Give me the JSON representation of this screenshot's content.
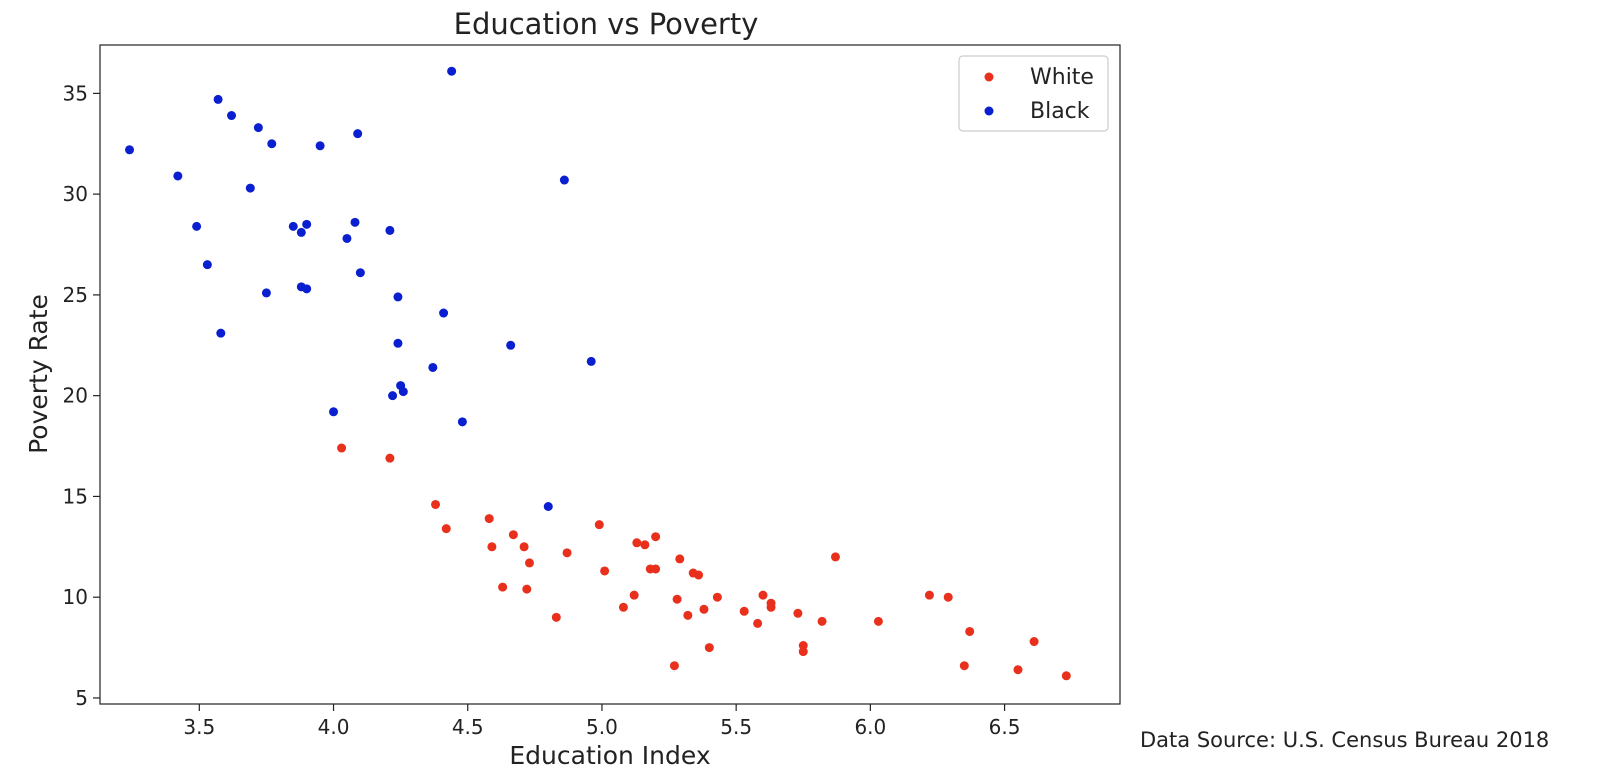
{
  "chart_data": {
    "type": "scatter",
    "title": "Education vs Poverty",
    "xlabel": "Education Index",
    "ylabel": "Poverty Rate",
    "xlim": [
      3.13,
      6.93
    ],
    "ylim": [
      4.7,
      37.4
    ],
    "xticks": [
      3.5,
      4.0,
      4.5,
      5.0,
      5.5,
      6.0,
      6.5
    ],
    "xtick_labels": [
      "3.5",
      "4.0",
      "4.5",
      "5.0",
      "5.5",
      "6.0",
      "6.5"
    ],
    "yticks": [
      5,
      10,
      15,
      20,
      25,
      30,
      35
    ],
    "ytick_labels": [
      "5",
      "10",
      "15",
      "20",
      "25",
      "30",
      "35"
    ],
    "grid": false,
    "legend_position": "top-right",
    "series": [
      {
        "name": "White",
        "color": "#e8301c",
        "points": [
          [
            4.03,
            17.4
          ],
          [
            4.21,
            16.9
          ],
          [
            4.38,
            14.6
          ],
          [
            4.42,
            13.4
          ],
          [
            4.58,
            13.9
          ],
          [
            4.59,
            12.5
          ],
          [
            4.63,
            10.5
          ],
          [
            4.67,
            13.1
          ],
          [
            4.71,
            12.5
          ],
          [
            4.72,
            10.4
          ],
          [
            4.73,
            11.7
          ],
          [
            4.83,
            9.0
          ],
          [
            4.87,
            12.2
          ],
          [
            4.99,
            13.6
          ],
          [
            5.01,
            11.3
          ],
          [
            5.08,
            9.5
          ],
          [
            5.12,
            10.1
          ],
          [
            5.13,
            12.7
          ],
          [
            5.16,
            12.6
          ],
          [
            5.18,
            11.4
          ],
          [
            5.2,
            11.4
          ],
          [
            5.2,
            13.0
          ],
          [
            5.27,
            6.6
          ],
          [
            5.28,
            9.9
          ],
          [
            5.29,
            11.9
          ],
          [
            5.32,
            9.1
          ],
          [
            5.34,
            11.2
          ],
          [
            5.36,
            11.1
          ],
          [
            5.38,
            9.4
          ],
          [
            5.4,
            7.5
          ],
          [
            5.43,
            10.0
          ],
          [
            5.53,
            9.3
          ],
          [
            5.58,
            8.7
          ],
          [
            5.6,
            10.1
          ],
          [
            5.63,
            9.7
          ],
          [
            5.63,
            9.5
          ],
          [
            5.73,
            9.2
          ],
          [
            5.75,
            7.6
          ],
          [
            5.75,
            7.3
          ],
          [
            5.82,
            8.8
          ],
          [
            5.87,
            12.0
          ],
          [
            6.03,
            8.8
          ],
          [
            6.22,
            10.1
          ],
          [
            6.29,
            10.0
          ],
          [
            6.35,
            6.6
          ],
          [
            6.37,
            8.3
          ],
          [
            6.55,
            6.4
          ],
          [
            6.61,
            7.8
          ],
          [
            6.73,
            6.1
          ]
        ]
      },
      {
        "name": "Black",
        "color": "#0a1fd0",
        "points": [
          [
            3.24,
            32.2
          ],
          [
            3.42,
            30.9
          ],
          [
            3.49,
            28.4
          ],
          [
            3.53,
            26.5
          ],
          [
            3.57,
            34.7
          ],
          [
            3.58,
            23.1
          ],
          [
            3.62,
            33.9
          ],
          [
            3.69,
            30.3
          ],
          [
            3.72,
            33.3
          ],
          [
            3.75,
            25.1
          ],
          [
            3.77,
            32.5
          ],
          [
            3.85,
            28.4
          ],
          [
            3.88,
            28.1
          ],
          [
            3.88,
            25.4
          ],
          [
            3.9,
            28.5
          ],
          [
            3.9,
            25.3
          ],
          [
            3.95,
            32.4
          ],
          [
            4.0,
            19.2
          ],
          [
            4.05,
            27.8
          ],
          [
            4.08,
            28.6
          ],
          [
            4.09,
            33.0
          ],
          [
            4.1,
            26.1
          ],
          [
            4.21,
            28.2
          ],
          [
            4.22,
            20.0
          ],
          [
            4.24,
            22.6
          ],
          [
            4.24,
            24.9
          ],
          [
            4.25,
            20.5
          ],
          [
            4.26,
            20.2
          ],
          [
            4.37,
            21.4
          ],
          [
            4.41,
            24.1
          ],
          [
            4.44,
            36.1
          ],
          [
            4.48,
            18.7
          ],
          [
            4.66,
            22.5
          ],
          [
            4.8,
            14.5
          ],
          [
            4.86,
            30.7
          ],
          [
            4.96,
            21.7
          ]
        ]
      }
    ],
    "source_note": "Data Source: U.S. Census Bureau 2018"
  }
}
